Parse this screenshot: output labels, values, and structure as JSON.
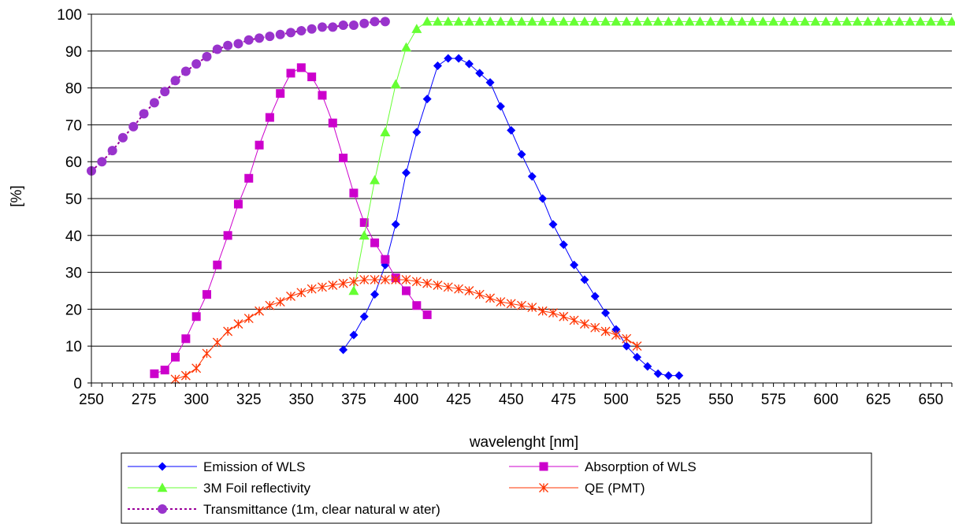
{
  "chart_data": {
    "type": "line",
    "xlabel": "wavelenght [nm]",
    "ylabel": "[%]",
    "xlim": [
      250,
      660
    ],
    "ylim": [
      0,
      100
    ],
    "x_ticks": [
      250,
      275,
      300,
      325,
      350,
      375,
      400,
      425,
      450,
      475,
      500,
      525,
      550,
      575,
      600,
      625,
      650
    ],
    "y_ticks": [
      0,
      10,
      20,
      30,
      40,
      50,
      60,
      70,
      80,
      90,
      100
    ],
    "grid": "horizontal",
    "legend_position": "bottom",
    "series": [
      {
        "name": "Emission of WLS",
        "color": "#0000ff",
        "marker": "diamond",
        "line_style": "solid",
        "x": [
          370,
          375,
          380,
          385,
          390,
          395,
          400,
          405,
          410,
          415,
          420,
          425,
          430,
          435,
          440,
          445,
          450,
          455,
          460,
          465,
          470,
          475,
          480,
          485,
          490,
          495,
          500,
          505,
          510,
          515,
          520,
          525,
          530
        ],
        "y": [
          9,
          13,
          18,
          24,
          32,
          43,
          57,
          68,
          77,
          86,
          88,
          88,
          86.5,
          84,
          81.5,
          75,
          68.5,
          62,
          56,
          50,
          43,
          37.5,
          32,
          28,
          23.5,
          19,
          14.5,
          10,
          7,
          4.5,
          2.5,
          2,
          2
        ]
      },
      {
        "name": "Absorption of WLS",
        "color": "#cc00cc",
        "marker": "square",
        "line_style": "solid",
        "x": [
          280,
          285,
          290,
          295,
          300,
          305,
          310,
          315,
          320,
          325,
          330,
          335,
          340,
          345,
          350,
          355,
          360,
          365,
          370,
          375,
          380,
          385,
          390,
          395,
          400,
          405,
          410
        ],
        "y": [
          2.5,
          3.5,
          7,
          12,
          18,
          24,
          32,
          40,
          48.5,
          55.5,
          64.5,
          72,
          78.5,
          84,
          85.5,
          83,
          78,
          70.5,
          61,
          51.5,
          43.5,
          38,
          33.5,
          28.5,
          25,
          21,
          18.5
        ]
      },
      {
        "name": "3M Foil reflectivity",
        "color": "#66ff33",
        "marker": "triangle",
        "line_style": "solid",
        "x": [
          375,
          380,
          385,
          390,
          395,
          400,
          405,
          410,
          415,
          420,
          425,
          430,
          435,
          440,
          445,
          450,
          455,
          460,
          465,
          470,
          475,
          480,
          485,
          490,
          495,
          500,
          505,
          510,
          515,
          520,
          525,
          530,
          535,
          540,
          545,
          550,
          555,
          560,
          565,
          570,
          575,
          580,
          585,
          590,
          595,
          600,
          605,
          610,
          615,
          620,
          625,
          630,
          635,
          640,
          645,
          650,
          655,
          660
        ],
        "y": [
          25,
          40,
          55,
          68,
          81,
          91,
          96,
          98,
          98,
          98,
          98,
          98,
          98,
          98,
          98,
          98,
          98,
          98,
          98,
          98,
          98,
          98,
          98,
          98,
          98,
          98,
          98,
          98,
          98,
          98,
          98,
          98,
          98,
          98,
          98,
          98,
          98,
          98,
          98,
          98,
          98,
          98,
          98,
          98,
          98,
          98,
          98,
          98,
          98,
          98,
          98,
          98,
          98,
          98,
          98,
          98,
          98,
          98
        ]
      },
      {
        "name": "QE (PMT)",
        "color": "#ff3300",
        "marker": "asterisk",
        "line_style": "solid",
        "x": [
          290,
          295,
          300,
          305,
          310,
          315,
          320,
          325,
          330,
          335,
          340,
          345,
          350,
          355,
          360,
          365,
          370,
          375,
          380,
          385,
          390,
          395,
          400,
          405,
          410,
          415,
          420,
          425,
          430,
          435,
          440,
          445,
          450,
          455,
          460,
          465,
          470,
          475,
          480,
          485,
          490,
          495,
          500,
          505,
          510
        ],
        "y": [
          1,
          2,
          4,
          8,
          11,
          14,
          16,
          17.5,
          19.5,
          21,
          22,
          23.5,
          24.5,
          25.5,
          26,
          26.5,
          27,
          27.5,
          28,
          28,
          28,
          28,
          28,
          27.5,
          27,
          26.5,
          26,
          25.5,
          25,
          24,
          23,
          22,
          21.5,
          21,
          20.5,
          19.5,
          19,
          18,
          17,
          16,
          15,
          14,
          13,
          12,
          10
        ]
      },
      {
        "name": "Transmittance (1m, clear natural w ater)",
        "color": "#990099",
        "marker_color": "#9933cc",
        "marker": "circle",
        "line_style": "dotted",
        "x": [
          250,
          255,
          260,
          265,
          270,
          275,
          280,
          285,
          290,
          295,
          300,
          305,
          310,
          315,
          320,
          325,
          330,
          335,
          340,
          345,
          350,
          355,
          360,
          365,
          370,
          375,
          380,
          385,
          390
        ],
        "y": [
          57.5,
          60,
          63,
          66.5,
          69.5,
          73,
          76,
          79,
          82,
          84.5,
          86.5,
          88.5,
          90.5,
          91.5,
          92,
          93,
          93.5,
          94,
          94.5,
          95,
          95.5,
          96,
          96.5,
          96.5,
          97,
          97,
          97.5,
          98,
          98
        ]
      }
    ]
  }
}
